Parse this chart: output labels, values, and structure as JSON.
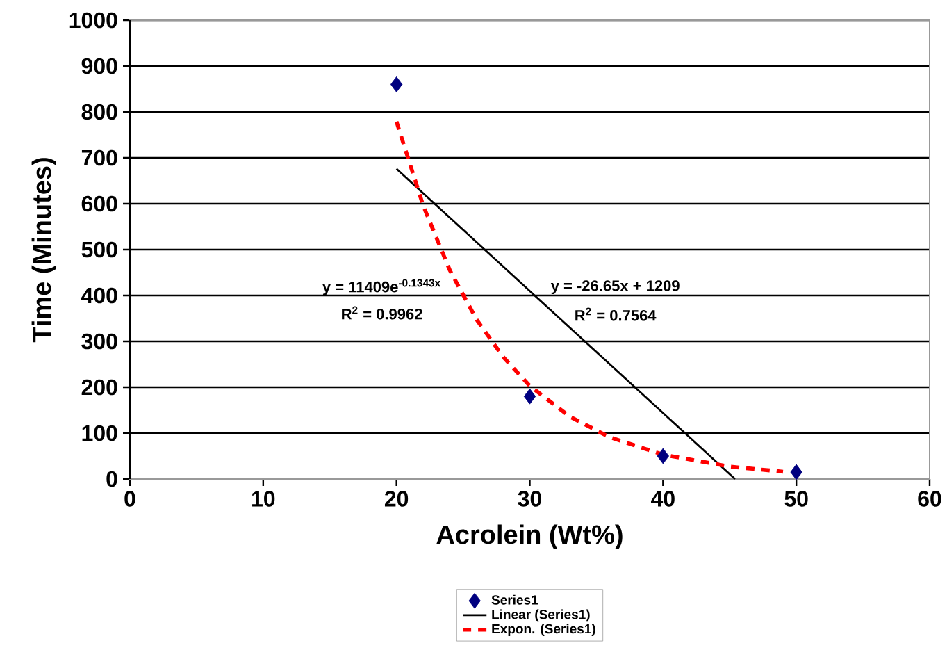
{
  "chart_data": {
    "type": "scatter",
    "xlabel": "Acrolein (Wt%)",
    "ylabel": "Time (Minutes)",
    "xlim": [
      0,
      60
    ],
    "xticks": [
      0,
      10,
      20,
      30,
      40,
      50,
      60
    ],
    "ylim": [
      0,
      1000
    ],
    "yticks": [
      0,
      100,
      200,
      300,
      400,
      500,
      600,
      700,
      800,
      900,
      1000
    ],
    "grid": "y",
    "legend": "bottom",
    "series": [
      {
        "name": "Series1",
        "marker": "diamond",
        "color": "#000080",
        "x": [
          20,
          30,
          40,
          50
        ],
        "values": [
          860,
          180,
          50,
          15
        ]
      },
      {
        "name": "Linear (Series1)",
        "type": "line",
        "line_style": "solid",
        "color": "#000000",
        "x": [
          20,
          45.4
        ],
        "values": [
          676,
          0
        ]
      },
      {
        "name": "Expon. (Series1)",
        "type": "line",
        "line_style": "dashed",
        "color": "#ff0000",
        "x": [
          20,
          22,
          24,
          26,
          28,
          30,
          33,
          36,
          40,
          45,
          49
        ],
        "values": [
          779,
          596,
          455,
          348,
          266,
          203,
          136,
          91,
          53,
          27,
          16
        ]
      }
    ],
    "annotations": [
      "y = 11409e$^{-0.1343x}$",
      "R$^{2}$ = 0.9962",
      "y = -26.65x + 1209",
      "R$^{2}$ = 0.7564"
    ]
  }
}
